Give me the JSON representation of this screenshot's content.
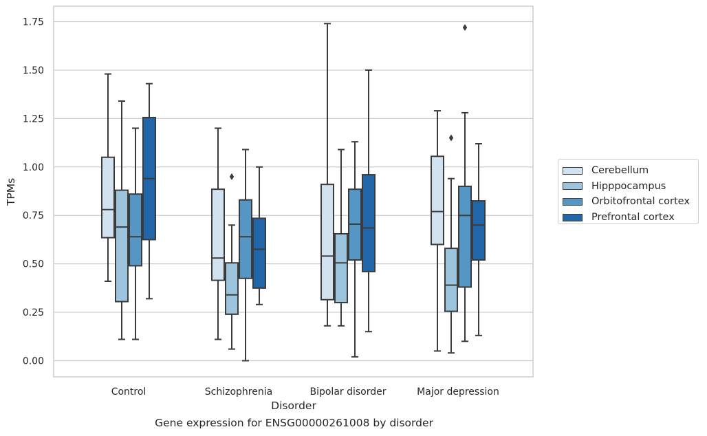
{
  "caption": "Gene expression for ENSG00000261008 by disorder",
  "chart_data": {
    "type": "box",
    "xlabel": "Disorder",
    "ylabel": "TPMs",
    "ylim": [
      -0.08,
      1.83
    ],
    "yticks": [
      "0.00",
      "0.25",
      "0.50",
      "0.75",
      "1.00",
      "1.25",
      "1.50",
      "1.75"
    ],
    "grid": "horizontal",
    "legend_position": "right",
    "categories": [
      "Control",
      "Schizophrenia",
      "Bipolar disorder",
      "Major depression"
    ],
    "series": [
      {
        "name": "Cerebellum",
        "color": "#d3e2f0",
        "boxes": [
          {
            "whislo": 0.41,
            "q1": 0.635,
            "med": 0.78,
            "q3": 1.05,
            "whishi": 1.48,
            "fliers": []
          },
          {
            "whislo": 0.11,
            "q1": 0.415,
            "med": 0.53,
            "q3": 0.885,
            "whishi": 1.2,
            "fliers": []
          },
          {
            "whislo": 0.18,
            "q1": 0.315,
            "med": 0.54,
            "q3": 0.91,
            "whishi": 1.74,
            "fliers": []
          },
          {
            "whislo": 0.05,
            "q1": 0.6,
            "med": 0.77,
            "q3": 1.055,
            "whishi": 1.29,
            "fliers": []
          }
        ]
      },
      {
        "name": "Hipppocampus",
        "color": "#9cc4dc",
        "boxes": [
          {
            "whislo": 0.11,
            "q1": 0.305,
            "med": 0.69,
            "q3": 0.88,
            "whishi": 1.34,
            "fliers": []
          },
          {
            "whislo": 0.06,
            "q1": 0.24,
            "med": 0.34,
            "q3": 0.505,
            "whishi": 0.7,
            "fliers": [
              0.95
            ]
          },
          {
            "whislo": 0.18,
            "q1": 0.3,
            "med": 0.505,
            "q3": 0.655,
            "whishi": 1.09,
            "fliers": []
          },
          {
            "whislo": 0.04,
            "q1": 0.255,
            "med": 0.39,
            "q3": 0.58,
            "whishi": 0.94,
            "fliers": [
              1.15
            ]
          }
        ]
      },
      {
        "name": "Orbitofrontal cortex",
        "color": "#5596c5",
        "boxes": [
          {
            "whislo": 0.11,
            "q1": 0.49,
            "med": 0.64,
            "q3": 0.86,
            "whishi": 1.2,
            "fliers": []
          },
          {
            "whislo": 0.0,
            "q1": 0.425,
            "med": 0.64,
            "q3": 0.83,
            "whishi": 1.09,
            "fliers": []
          },
          {
            "whislo": 0.02,
            "q1": 0.52,
            "med": 0.705,
            "q3": 0.885,
            "whishi": 1.13,
            "fliers": []
          },
          {
            "whislo": 0.1,
            "q1": 0.38,
            "med": 0.75,
            "q3": 0.9,
            "whishi": 1.28,
            "fliers": [
              1.72
            ]
          }
        ]
      },
      {
        "name": "Prefrontal cortex",
        "color": "#2166a8",
        "boxes": [
          {
            "whislo": 0.32,
            "q1": 0.625,
            "med": 0.94,
            "q3": 1.255,
            "whishi": 1.43,
            "fliers": []
          },
          {
            "whislo": 0.29,
            "q1": 0.375,
            "med": 0.575,
            "q3": 0.735,
            "whishi": 1.0,
            "fliers": []
          },
          {
            "whislo": 0.15,
            "q1": 0.46,
            "med": 0.685,
            "q3": 0.96,
            "whishi": 1.5,
            "fliers": []
          },
          {
            "whislo": 0.13,
            "q1": 0.52,
            "med": 0.7,
            "q3": 0.825,
            "whishi": 1.12,
            "fliers": []
          }
        ]
      }
    ]
  }
}
